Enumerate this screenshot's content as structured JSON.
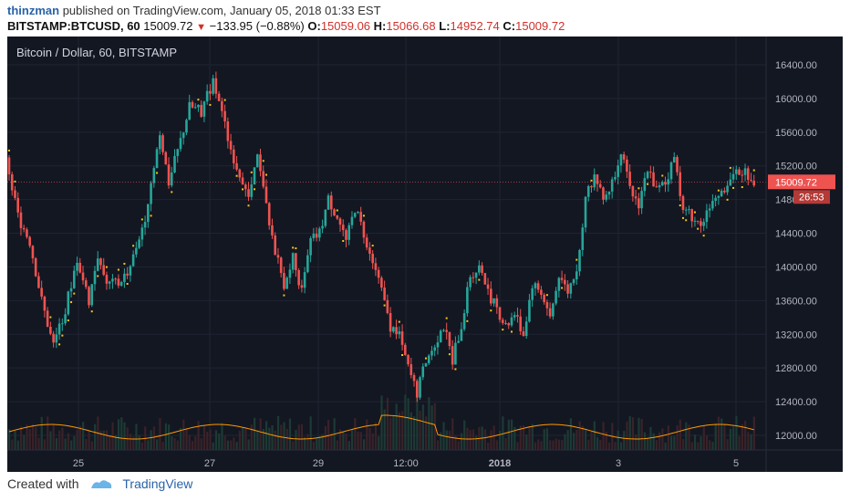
{
  "header": {
    "user": "thinzman",
    "published_text": "published on TradingView.com, January 05, 2018 01:33 EST",
    "symbol": "BITSTAMP:BTCUSD, 60",
    "last": "15009.72",
    "change": "−133.95 (−0.88%)",
    "o_label": "O:",
    "o_value": "15059.06",
    "h_label": "H:",
    "h_value": "15066.68",
    "l_label": "L:",
    "l_value": "14952.74",
    "c_label": "C:",
    "c_value": "15009.72"
  },
  "chart_title": "Bitcoin / Dollar, 60, BITSTAMP",
  "price_badge": "15009.72",
  "timer_badge": "26:53",
  "footer": {
    "created_with": "Created with",
    "brand": "TradingView"
  },
  "colors": {
    "up": "#26a69a",
    "down": "#ef5350",
    "marker": "#f5c518",
    "volume_line": "#ff9800",
    "background": "#131722",
    "price_badge": "#ef5350"
  },
  "chart_data": {
    "type": "candlestick",
    "y_ticks": [
      16400,
      16000,
      15600,
      15200,
      14800,
      14400,
      14000,
      13600,
      13200,
      12800,
      12400,
      12000
    ],
    "y_tick_labels": [
      "16400.00",
      "16000.00",
      "15600.00",
      "15200.00",
      "14800.00",
      "14400.00",
      "14000.00",
      "13600.00",
      "13200.00",
      "12800.00",
      "12400.00",
      "12000.00"
    ],
    "x_tick_labels": [
      "25",
      "27",
      "29",
      "12:00",
      "2018",
      "3",
      "5"
    ],
    "ylim": [
      11850,
      16750
    ],
    "last_price": 15009.72,
    "close_path": [
      [
        0,
        15300
      ],
      [
        4,
        14600
      ],
      [
        8,
        14300
      ],
      [
        12,
        13600
      ],
      [
        16,
        13050
      ],
      [
        20,
        13500
      ],
      [
        24,
        14100
      ],
      [
        28,
        13600
      ],
      [
        31,
        14150
      ],
      [
        34,
        13800
      ],
      [
        38,
        13800
      ],
      [
        42,
        14000
      ],
      [
        47,
        14600
      ],
      [
        52,
        15600
      ],
      [
        55,
        15000
      ],
      [
        59,
        15500
      ],
      [
        62,
        15900
      ],
      [
        66,
        15850
      ],
      [
        70,
        16200
      ],
      [
        73,
        15800
      ],
      [
        76,
        15400
      ],
      [
        79,
        15100
      ],
      [
        82,
        14800
      ],
      [
        85,
        15300
      ],
      [
        88,
        14700
      ],
      [
        91,
        14200
      ],
      [
        94,
        13800
      ],
      [
        97,
        14100
      ],
      [
        100,
        13700
      ],
      [
        103,
        14300
      ],
      [
        106,
        14400
      ],
      [
        109,
        14800
      ],
      [
        112,
        14600
      ],
      [
        115,
        14300
      ],
      [
        118,
        14700
      ],
      [
        121,
        14400
      ],
      [
        124,
        14100
      ],
      [
        127,
        13700
      ],
      [
        130,
        13300
      ],
      [
        133,
        13200
      ],
      [
        136,
        12800
      ],
      [
        139,
        12500
      ],
      [
        142,
        12900
      ],
      [
        145,
        13100
      ],
      [
        148,
        13300
      ],
      [
        151,
        12900
      ],
      [
        154,
        13300
      ],
      [
        157,
        13900
      ],
      [
        160,
        14000
      ],
      [
        163,
        13700
      ],
      [
        166,
        13500
      ],
      [
        169,
        13300
      ],
      [
        172,
        13450
      ],
      [
        175,
        13200
      ],
      [
        178,
        13800
      ],
      [
        181,
        13700
      ],
      [
        184,
        13400
      ],
      [
        187,
        13900
      ],
      [
        190,
        13700
      ],
      [
        193,
        14000
      ],
      [
        196,
        14800
      ],
      [
        199,
        15100
      ],
      [
        202,
        14800
      ],
      [
        205,
        15000
      ],
      [
        208,
        15400
      ],
      [
        211,
        14900
      ],
      [
        214,
        14750
      ],
      [
        217,
        15200
      ],
      [
        220,
        14900
      ],
      [
        223,
        15000
      ],
      [
        226,
        15300
      ],
      [
        229,
        14700
      ],
      [
        232,
        14600
      ],
      [
        235,
        14500
      ],
      [
        238,
        14700
      ],
      [
        241,
        14800
      ],
      [
        244,
        15000
      ],
      [
        247,
        15100
      ],
      [
        250,
        15150
      ],
      [
        253,
        15009.72
      ]
    ]
  }
}
